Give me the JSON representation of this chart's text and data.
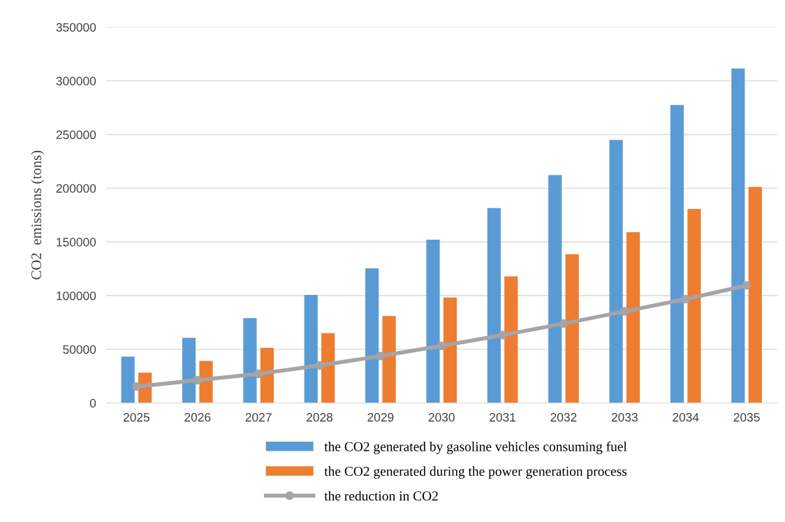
{
  "chart_data": {
    "type": "bar",
    "ylabel": "CO2  emissions (tons)",
    "categories": [
      "2025",
      "2026",
      "2027",
      "2028",
      "2029",
      "2030",
      "2031",
      "2032",
      "2033",
      "2034",
      "2035"
    ],
    "series": [
      {
        "name": "the CO2 generated by gasoline vehicles consuming fuel",
        "color": "#5b9bd5",
        "values": [
          43300,
          60700,
          79000,
          100600,
          125400,
          152100,
          181500,
          212200,
          244900,
          277500,
          311500
        ]
      },
      {
        "name": "the CO2 generated during the power generation process",
        "color": "#ed7d31",
        "values": [
          28300,
          39200,
          51300,
          65100,
          81000,
          98300,
          117900,
          138500,
          159100,
          180700,
          201200
        ]
      },
      {
        "name": "the reduction in CO2",
        "color": "#a5a5a5",
        "type": "line",
        "marker": "circle",
        "values": [
          15300,
          21200,
          27100,
          34900,
          43700,
          53200,
          63200,
          73900,
          85300,
          96700,
          109500
        ]
      }
    ],
    "ylim": [
      0,
      350000
    ],
    "yticks": [
      0,
      50000,
      100000,
      150000,
      200000,
      250000,
      300000,
      350000
    ],
    "grid": "y",
    "legend": "bottom"
  }
}
